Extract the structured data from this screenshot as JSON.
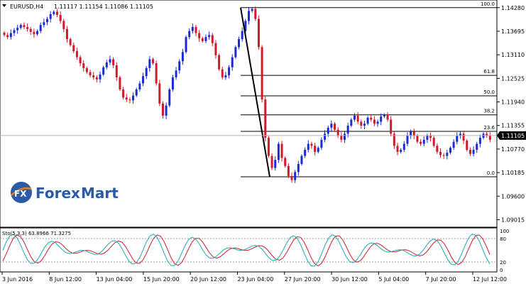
{
  "header": {
    "symbol": "EURUSD,H4",
    "ohlc": "1.11117 1.11154 1.11086 1.11105"
  },
  "logo": {
    "text_fx": "FX",
    "text_forex": "Forex",
    "text_mart": "Mart"
  },
  "oscillator": {
    "label": "Sto(5,3,3) 63.8966 71.3275"
  },
  "colors": {
    "bull": "#1a2bd6",
    "bear": "#d11a2a",
    "fib": "#000000",
    "stoch_main": "#1fa6b8",
    "stoch_signal": "#d11a2a",
    "current_price_line": "#b0b0b0",
    "logo_blue": "#2a5aa8",
    "logo_orange": "#e87a1e"
  },
  "chart_data": [
    {
      "type": "candlestick",
      "title": "EURUSD,H4",
      "y_ticks": [
        "1.14280",
        "1.13695",
        "1.13110",
        "1.12525",
        "1.11940",
        "1.11355",
        "1.10770",
        "1.10185",
        "1.09600",
        "1.09015"
      ],
      "ylim": [
        1.089,
        1.144
      ],
      "current_price": "1.11105",
      "x_ticks": [
        "3 Jun 2016",
        "8 Jun 12:00",
        "13 Jun 04:00",
        "15 Jun 20:00",
        "20 Jun 12:00",
        "23 Jun 04:00",
        "27 Jun 20:00",
        "30 Jun 12:00",
        "5 Jul 04:00",
        "7 Jul 20:00",
        "12 Jul 12:00"
      ],
      "fibonacci": {
        "levels": [
          {
            "label": "100.0",
            "price": 1.1428
          },
          {
            "label": "61.8",
            "price": 1.126
          },
          {
            "label": "50.0",
            "price": 1.1209
          },
          {
            "label": "38.2",
            "price": 1.1162
          },
          {
            "label": "23.6",
            "price": 1.1121
          },
          {
            "label": "0.0",
            "price": 1.1008
          }
        ],
        "trend_line": {
          "from_price": 1.1428,
          "to_price": 1.1008
        }
      },
      "price_path": [
        1.136,
        1.1355,
        1.1365,
        1.1372,
        1.1378,
        1.1385,
        1.138,
        1.1375,
        1.1368,
        1.1362,
        1.137,
        1.1385,
        1.1392,
        1.14,
        1.1412,
        1.1418,
        1.141,
        1.1395,
        1.1375,
        1.135,
        1.1335,
        1.132,
        1.1305,
        1.129,
        1.1278,
        1.1268,
        1.126,
        1.1255,
        1.125,
        1.1262,
        1.128,
        1.1292,
        1.13,
        1.1285,
        1.1255,
        1.1225,
        1.1205,
        1.12,
        1.1198,
        1.121,
        1.1225,
        1.124,
        1.1258,
        1.1278,
        1.13,
        1.129,
        1.124,
        1.119,
        1.116,
        1.1185,
        1.1225,
        1.1255,
        1.1272,
        1.1295,
        1.1318,
        1.1355,
        1.137,
        1.138,
        1.1365,
        1.1352,
        1.1345,
        1.1355,
        1.136,
        1.134,
        1.131,
        1.1275,
        1.1255,
        1.126,
        1.128,
        1.1305,
        1.133,
        1.135,
        1.137,
        1.1395,
        1.142,
        1.1425,
        1.14,
        1.133,
        1.12,
        1.1105,
        1.106,
        1.103,
        1.105,
        1.109,
        1.1055,
        1.1035,
        1.101,
        1.1,
        1.102,
        1.104,
        1.106,
        1.1075,
        1.109,
        1.1085,
        1.107,
        1.108,
        1.11,
        1.1115,
        1.113,
        1.114,
        1.1125,
        1.111,
        1.11,
        1.1115,
        1.1135,
        1.115,
        1.116,
        1.1145,
        1.1135,
        1.114,
        1.1155,
        1.115,
        1.114,
        1.1145,
        1.1158,
        1.1162,
        1.115,
        1.1115,
        1.1085,
        1.107,
        1.1075,
        1.109,
        1.111,
        1.112,
        1.111,
        1.1095,
        1.109,
        1.11,
        1.111,
        1.1105,
        1.1085,
        1.107,
        1.1062,
        1.106,
        1.1068,
        1.108,
        1.1095,
        1.111,
        1.1115,
        1.1098,
        1.1075,
        1.1065,
        1.1075,
        1.109,
        1.1105,
        1.1115,
        1.111,
        1.11
      ],
      "oscillator": {
        "name": "Sto(5,3,3)",
        "main": "63.8966",
        "signal": "71.3275",
        "levels": [
          "100",
          "80",
          "20",
          "0"
        ]
      }
    }
  ]
}
